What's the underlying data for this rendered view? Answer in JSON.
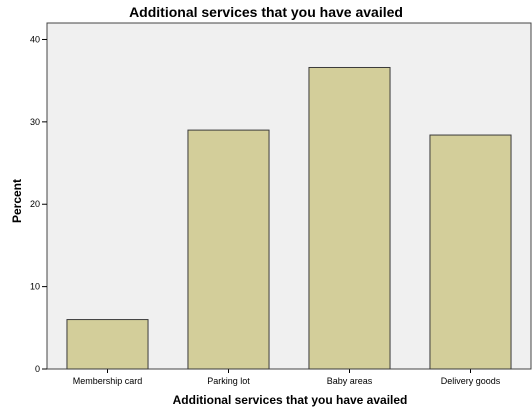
{
  "chart_data": {
    "type": "bar",
    "title": "Additional services that you have availed",
    "xlabel": "Additional services that you have availed",
    "ylabel": "Percent",
    "categories": [
      "Membership card",
      "Parking lot",
      "Baby areas",
      "Delivery goods"
    ],
    "values": [
      6.0,
      29.0,
      36.6,
      28.4
    ],
    "ylim": [
      0,
      42
    ],
    "yticks": [
      0,
      10,
      20,
      30,
      40
    ],
    "grid": false,
    "legend": "none",
    "colors": {
      "bar_fill": "#d3ce9a",
      "bar_stroke": "#3a3a3a",
      "plot_background": "#f0f0f0",
      "plot_border": "#444444"
    }
  }
}
